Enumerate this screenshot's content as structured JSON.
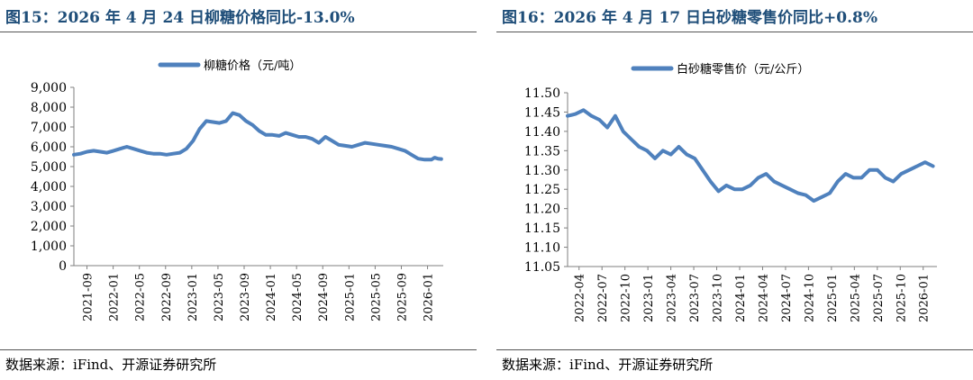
{
  "colors": {
    "line": "#4f81bd",
    "title": "#1f4e79",
    "axis": "#7f7f7f"
  },
  "chart_data": [
    {
      "type": "line",
      "title": "图15：2026 年 4 月 24 日柳糖价格同比-13.0%",
      "legend": "柳糖价格（元/吨）",
      "legend_position": "top",
      "source": "数据来源：iFind、开源证券研究所",
      "ylim": [
        0,
        9000
      ],
      "yticks": [
        "0",
        "1,000",
        "2,000",
        "3,000",
        "4,000",
        "5,000",
        "6,000",
        "7,000",
        "8,000",
        "9,000"
      ],
      "xlim": [
        0,
        55.8
      ],
      "xticks": [
        "2021-09",
        "2022-01",
        "2022-05",
        "2022-09",
        "2023-01",
        "2023-05",
        "2023-09",
        "2024-01",
        "2024-05",
        "2024-09",
        "2025-01",
        "2025-05",
        "2025-09",
        "2026-01"
      ],
      "x": [
        0,
        1,
        2,
        3,
        4,
        5,
        6,
        7,
        7.5,
        8,
        9,
        10,
        11,
        12,
        13,
        14,
        15,
        16,
        17,
        18,
        18.5,
        19,
        19.5,
        20,
        21,
        22,
        23,
        24,
        25,
        26,
        27,
        28,
        29,
        30,
        31,
        32,
        33,
        34,
        35,
        35.5,
        36,
        37,
        38,
        39,
        40,
        41,
        42,
        43,
        44,
        45,
        46,
        47,
        48,
        49,
        50,
        51,
        52,
        53,
        54,
        54.5,
        55,
        55.5
      ],
      "values": [
        5600,
        5650,
        5750,
        5800,
        5750,
        5700,
        5800,
        5900,
        5950,
        6000,
        5900,
        5800,
        5700,
        5650,
        5650,
        5600,
        5650,
        5700,
        5900,
        6300,
        6600,
        6900,
        7100,
        7300,
        7250,
        7200,
        7300,
        7700,
        7600,
        7300,
        7100,
        6800,
        6600,
        6600,
        6550,
        6700,
        6600,
        6500,
        6500,
        6450,
        6400,
        6200,
        6500,
        6300,
        6100,
        6050,
        6000,
        6100,
        6200,
        6150,
        6100,
        6050,
        6000,
        5900,
        5800,
        5600,
        5400,
        5350,
        5350,
        5450,
        5400,
        5380
      ],
      "grid": false
    },
    {
      "type": "line",
      "title": "图16：2026 年 4 月 17 日白砂糖零售价同比+0.8%",
      "legend": "白砂糖零售价（元/公斤）",
      "legend_position": "top",
      "source": "数据来源：iFind、开源证券研究所",
      "ylim": [
        11.05,
        11.5
      ],
      "yticks": [
        "11.05",
        "11.10",
        "11.15",
        "11.20",
        "11.25",
        "11.30",
        "11.35",
        "11.40",
        "11.45",
        "11.50"
      ],
      "xlim": [
        0,
        46.5
      ],
      "xticks": [
        "2022-04",
        "2022-07",
        "2022-10",
        "2023-01",
        "2023-04",
        "2023-07",
        "2023-10",
        "2024-01",
        "2024-04",
        "2024-07",
        "2024-10",
        "2025-01",
        "2025-04",
        "2025-07",
        "2025-10",
        "2026-01"
      ],
      "x": [
        0,
        1,
        2,
        3,
        4,
        5,
        6,
        7,
        8,
        9,
        10,
        11,
        12,
        13,
        14,
        15,
        16,
        17,
        18,
        19,
        20,
        21,
        22,
        23,
        24,
        25,
        26,
        27,
        28,
        29,
        30,
        31,
        32,
        33,
        34,
        35,
        36,
        37,
        38,
        39,
        40,
        41,
        42,
        43,
        44,
        45,
        46
      ],
      "values": [
        11.44,
        11.445,
        11.455,
        11.44,
        11.43,
        11.41,
        11.44,
        11.4,
        11.38,
        11.36,
        11.35,
        11.33,
        11.35,
        11.34,
        11.36,
        11.34,
        11.33,
        11.3,
        11.27,
        11.245,
        11.26,
        11.25,
        11.25,
        11.26,
        11.28,
        11.29,
        11.27,
        11.26,
        11.25,
        11.24,
        11.235,
        11.22,
        11.23,
        11.24,
        11.27,
        11.29,
        11.28,
        11.28,
        11.3,
        11.3,
        11.28,
        11.27,
        11.29,
        11.3,
        11.31,
        11.32,
        11.31
      ],
      "grid": false
    }
  ]
}
